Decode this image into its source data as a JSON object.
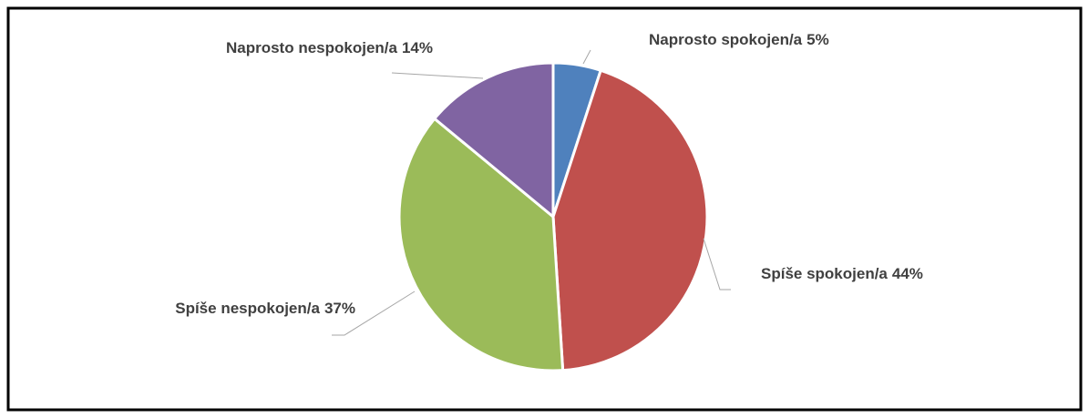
{
  "chart_data": {
    "type": "pie",
    "categories": [
      "Naprosto spokojen/a",
      "Spíše spokojen/a",
      "Spíše nespokojen/a",
      "Naprosto nespokojen/a"
    ],
    "values": [
      5,
      44,
      37,
      14
    ],
    "value_labels": [
      "5%",
      "44%",
      "37%",
      "14%"
    ],
    "colors": [
      "#4f81bd",
      "#c0504d",
      "#9bbb59",
      "#8064a2"
    ]
  }
}
